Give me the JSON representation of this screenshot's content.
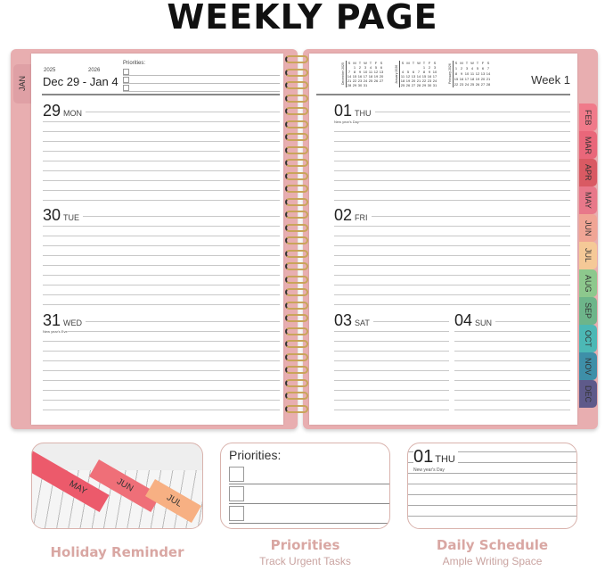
{
  "title": "WEEKLY PAGE",
  "left_page": {
    "year_start": "2025",
    "year_end": "2026",
    "range": "Dec 29 - Jan 4",
    "priorities_label": "Priorities:",
    "tab": "JAN",
    "days": [
      {
        "num": "29",
        "name": "MON",
        "holiday": ""
      },
      {
        "num": "30",
        "name": "TUE",
        "holiday": ""
      },
      {
        "num": "31",
        "name": "WED",
        "holiday": "New year's Eve"
      }
    ]
  },
  "right_page": {
    "week": "Week 1",
    "days": [
      {
        "num": "01",
        "name": "THU",
        "holiday": "New year's Day"
      },
      {
        "num": "02",
        "name": "FRI",
        "holiday": ""
      },
      {
        "num": "03",
        "name": "SAT",
        "holiday": ""
      },
      {
        "num": "04",
        "name": "SUN",
        "holiday": ""
      }
    ],
    "mini_calendars": [
      {
        "label": "December 2025",
        "head": [
          "S",
          "M",
          "T",
          "W",
          "T",
          "F",
          "S"
        ],
        "cells": [
          "",
          "1",
          "2",
          "3",
          "4",
          "5",
          "6",
          "7",
          "8",
          "9",
          "10",
          "11",
          "12",
          "13",
          "14",
          "15",
          "16",
          "17",
          "18",
          "19",
          "20",
          "21",
          "22",
          "23",
          "24",
          "25",
          "26",
          "27",
          "28",
          "29",
          "30",
          "31"
        ]
      },
      {
        "label": "January 2026",
        "head": [
          "S",
          "M",
          "T",
          "W",
          "T",
          "F",
          "S"
        ],
        "cells": [
          "",
          "",
          "",
          "",
          "1",
          "2",
          "3",
          "4",
          "5",
          "6",
          "7",
          "8",
          "9",
          "10",
          "11",
          "12",
          "13",
          "14",
          "15",
          "16",
          "17",
          "18",
          "19",
          "20",
          "21",
          "22",
          "23",
          "24",
          "25",
          "26",
          "27",
          "28",
          "29",
          "30",
          "31"
        ]
      },
      {
        "label": "February 2026",
        "head": [
          "S",
          "M",
          "T",
          "W",
          "T",
          "F",
          "S"
        ],
        "cells": [
          "1",
          "2",
          "3",
          "4",
          "5",
          "6",
          "7",
          "8",
          "9",
          "10",
          "11",
          "12",
          "13",
          "14",
          "15",
          "16",
          "17",
          "18",
          "19",
          "20",
          "21",
          "22",
          "23",
          "24",
          "25",
          "26",
          "27",
          "28"
        ]
      }
    ]
  },
  "month_tabs": [
    {
      "label": "FEB",
      "color": "#f07a8a"
    },
    {
      "label": "MAR",
      "color": "#e9677a"
    },
    {
      "label": "APR",
      "color": "#d95a63"
    },
    {
      "label": "MAY",
      "color": "#e8788a"
    },
    {
      "label": "JUN",
      "color": "#f0a595"
    },
    {
      "label": "JUL",
      "color": "#f5c997"
    },
    {
      "label": "AUG",
      "color": "#8dc88d"
    },
    {
      "label": "SEP",
      "color": "#6db58a"
    },
    {
      "label": "OCT",
      "color": "#4cb8b5"
    },
    {
      "label": "NOV",
      "color": "#3e8fa8"
    },
    {
      "label": "DEC",
      "color": "#5e5a8a"
    }
  ],
  "features": [
    {
      "title": "Holiday Reminder",
      "subtitle": "",
      "tabs": [
        "MAY",
        "JUN",
        "JUL"
      ]
    },
    {
      "title": "Priorities",
      "subtitle": "Track Urgent Tasks",
      "label": "Priorities:"
    },
    {
      "title": "Daily Schedule",
      "subtitle": "Ample Writing Space",
      "num": "01",
      "name": "THU",
      "holiday": "New year's Day"
    }
  ],
  "colors": {
    "cover": "#e8aeb0",
    "accent_text": "#d9a7a3",
    "spiral": "#c9a55a"
  }
}
